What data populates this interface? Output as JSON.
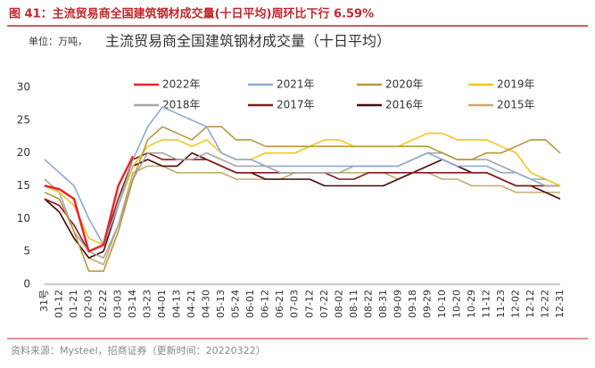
{
  "chart_data": {
    "type": "line",
    "figure_title": "图 41：主流贸易商全国建筑钢材成交量(十日平均)周环比下行 6.59%",
    "unit": "单位：万吨，",
    "title": "主流贸易商全国建筑钢材成交量（十日平均）",
    "source": "资料来源：Mysteel，招商证券（更新时间：20220322）",
    "categories": [
      "31号",
      "01-12",
      "01-21",
      "02-03",
      "02-22",
      "03-03",
      "03-14",
      "03-23",
      "04-01",
      "04-13",
      "04-21",
      "04-30",
      "05-13",
      "05-24",
      "06-01",
      "06-12",
      "06-21",
      "07-03",
      "07-12",
      "07-22",
      "08-02",
      "08-11",
      "08-22",
      "08-31",
      "09-09",
      "09-18",
      "09-29",
      "10-10",
      "10-20",
      "10-29",
      "11-12",
      "11-23",
      "12-02",
      "12-12",
      "12-22",
      "12-31"
    ],
    "ylim": [
      0,
      30
    ],
    "yticks": [
      0,
      5,
      10,
      15,
      20,
      25,
      30
    ],
    "grid": false,
    "series": [
      {
        "name": "2022年",
        "color": "#e8262a",
        "values": [
          15,
          14.5,
          13,
          5,
          6,
          15,
          19.5,
          null,
          null,
          null,
          null,
          null,
          null,
          null,
          null,
          null,
          null,
          null,
          null,
          null,
          null,
          null,
          null,
          null,
          null,
          null,
          null,
          null,
          null,
          null,
          null,
          null,
          null,
          null,
          null,
          null
        ]
      },
      {
        "name": "2021年",
        "color": "#8fa9d6",
        "values": [
          19,
          17,
          15,
          10,
          6,
          12,
          19,
          24,
          27,
          26,
          25,
          24,
          20,
          19,
          19,
          18,
          18,
          18,
          18,
          18,
          18,
          18,
          18,
          18,
          18,
          19,
          20,
          19,
          18,
          18,
          18,
          17,
          17,
          16,
          16,
          null
        ]
      },
      {
        "name": "2020年",
        "color": "#b8973c",
        "values": [
          14,
          13,
          8,
          2,
          2,
          8,
          16,
          22,
          24,
          23,
          22,
          24,
          24,
          22,
          22,
          21,
          21,
          21,
          21,
          21,
          21,
          21,
          21,
          21,
          21,
          21,
          21,
          20,
          19,
          19,
          20,
          20,
          21,
          22,
          22,
          20
        ]
      },
      {
        "name": "2019年",
        "color": "#f5c518",
        "values": [
          15,
          14,
          12,
          7,
          6,
          12,
          18,
          21,
          22,
          22,
          21,
          22,
          20,
          19,
          19,
          20,
          20,
          20,
          21,
          22,
          22,
          21,
          21,
          21,
          21,
          22,
          23,
          23,
          22,
          22,
          22,
          21,
          20,
          17,
          16,
          15
        ]
      },
      {
        "name": "2018年",
        "color": "#a6a6a6",
        "values": [
          16,
          14,
          8,
          5,
          4,
          9,
          16,
          20,
          20,
          19,
          19,
          20,
          19,
          18,
          18,
          18,
          17,
          17,
          17,
          17,
          17,
          18,
          18,
          18,
          18,
          19,
          20,
          20,
          19,
          19,
          19,
          18,
          17,
          16,
          15,
          15
        ]
      },
      {
        "name": "2017年",
        "color": "#8b1a1a",
        "values": [
          13,
          12,
          9,
          5,
          6,
          13,
          19,
          20,
          19,
          19,
          19,
          19,
          18,
          17,
          17,
          17,
          17,
          17,
          17,
          17,
          16,
          16,
          17,
          17,
          17,
          17,
          17,
          17,
          17,
          17,
          17,
          16,
          15,
          15,
          15,
          15
        ]
      },
      {
        "name": "2016年",
        "color": "#4a0a0a",
        "values": [
          13,
          11,
          7,
          4,
          5,
          12,
          18,
          19,
          18,
          18,
          20,
          19,
          18,
          17,
          17,
          16,
          16,
          16,
          16,
          15,
          15,
          15,
          15,
          15,
          16,
          17,
          18,
          19,
          18,
          17,
          17,
          16,
          15,
          15,
          14,
          13
        ]
      },
      {
        "name": "2015年",
        "color": "#c9a96e",
        "values": [
          13,
          11,
          7,
          4,
          3,
          9,
          17,
          18,
          18,
          17,
          17,
          17,
          17,
          16,
          16,
          16,
          16,
          17,
          17,
          17,
          17,
          17,
          17,
          17,
          16,
          17,
          17,
          16,
          16,
          15,
          15,
          15,
          14,
          14,
          14,
          14
        ]
      }
    ]
  }
}
